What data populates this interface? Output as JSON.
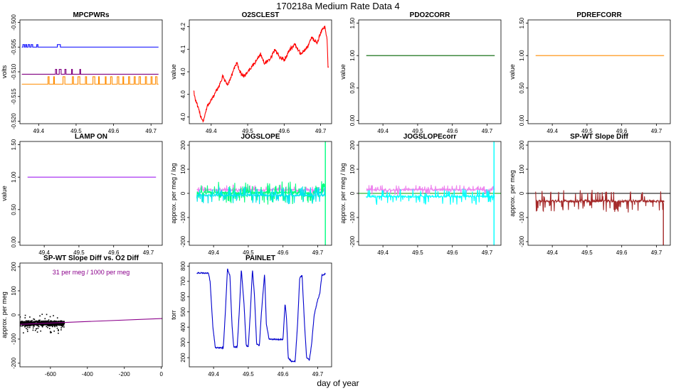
{
  "page_title": "170218a   Medium Rate Data 4",
  "shared_xlabel": "day of year",
  "chart_data": [
    {
      "id": "mpcpwrs",
      "type": "line",
      "title": "MPCPWRs",
      "ylabel": "volts",
      "xlim": [
        49.35,
        49.73
      ],
      "ylim": [
        -0.5205,
        -0.4995
      ],
      "xticks": [
        49.4,
        49.5,
        49.6,
        49.7
      ],
      "yticks": [
        -0.5,
        -0.505,
        -0.51,
        -0.515,
        -0.52
      ],
      "series": [
        {
          "color": "#0000ff",
          "gen": "step",
          "base": -0.505,
          "alt": -0.5045,
          "x0": 49.355,
          "x1": 49.72,
          "pulses": [
            [
              49.358,
              49.362
            ],
            [
              49.365,
              49.368
            ],
            [
              49.372,
              49.376
            ],
            [
              49.38,
              49.384
            ],
            [
              49.395,
              49.398
            ],
            [
              49.45,
              49.458
            ]
          ]
        },
        {
          "color": "#800080",
          "gen": "step",
          "base": -0.5105,
          "alt": -0.5095,
          "x0": 49.355,
          "x1": 49.72,
          "pulses": [
            [
              49.445,
              49.448
            ],
            [
              49.455,
              49.46
            ],
            [
              49.47,
              49.473
            ],
            [
              49.488,
              49.49
            ],
            [
              49.51,
              49.512
            ]
          ]
        },
        {
          "color": "#ff8c00",
          "gen": "step",
          "base": -0.5125,
          "alt": -0.511,
          "x0": 49.355,
          "x1": 49.72,
          "pulses": [
            [
              49.425,
              49.428
            ],
            [
              49.44,
              49.442
            ],
            [
              49.465,
              49.47
            ],
            [
              49.49,
              49.493
            ],
            [
              49.505,
              49.51
            ],
            [
              49.525,
              49.528
            ],
            [
              49.545,
              49.55
            ],
            [
              49.56,
              49.562
            ],
            [
              49.578,
              49.58
            ],
            [
              49.592,
              49.596
            ],
            [
              49.61,
              49.614
            ],
            [
              49.625,
              49.627
            ],
            [
              49.64,
              49.643
            ],
            [
              49.655,
              49.658
            ],
            [
              49.668,
              49.672
            ],
            [
              49.685,
              49.688
            ],
            [
              49.7,
              49.703
            ],
            [
              49.712,
              49.716
            ]
          ]
        }
      ]
    },
    {
      "id": "o2sclest",
      "type": "line",
      "title": "O2SCLEST",
      "ylabel": "value",
      "xlim": [
        49.34,
        49.73
      ],
      "ylim": [
        3.935,
        4.165
      ],
      "xticks": [
        49.4,
        49.5,
        49.6,
        49.7
      ],
      "yticks": [
        3.95,
        4.0,
        4.05,
        4.1,
        4.15
      ],
      "series": [
        {
          "color": "#ff0000",
          "gen": "noisy",
          "noise": 0.004,
          "x0": 49.352,
          "x1": 49.722,
          "points": [
            [
              49.352,
              4.01
            ],
            [
              49.356,
              3.99
            ],
            [
              49.37,
              3.955
            ],
            [
              49.378,
              3.94
            ],
            [
              49.39,
              3.975
            ],
            [
              49.41,
              4.0
            ],
            [
              49.425,
              4.025
            ],
            [
              49.432,
              4.04
            ],
            [
              49.445,
              4.02
            ],
            [
              49.46,
              4.05
            ],
            [
              49.47,
              4.07
            ],
            [
              49.478,
              4.05
            ],
            [
              49.49,
              4.04
            ],
            [
              49.505,
              4.055
            ],
            [
              49.52,
              4.07
            ],
            [
              49.535,
              4.09
            ],
            [
              49.545,
              4.07
            ],
            [
              49.56,
              4.075
            ],
            [
              49.575,
              4.1
            ],
            [
              49.585,
              4.085
            ],
            [
              49.6,
              4.075
            ],
            [
              49.615,
              4.1
            ],
            [
              49.63,
              4.11
            ],
            [
              49.645,
              4.09
            ],
            [
              49.66,
              4.1
            ],
            [
              49.675,
              4.125
            ],
            [
              49.69,
              4.115
            ],
            [
              49.705,
              4.145
            ],
            [
              49.712,
              4.15
            ],
            [
              49.718,
              4.12
            ],
            [
              49.72,
              4.06
            ]
          ]
        }
      ]
    },
    {
      "id": "pdo2corr",
      "type": "line",
      "title": "PDO2CORR",
      "ylabel": "value",
      "xlim": [
        49.33,
        49.74
      ],
      "ylim": [
        -0.05,
        1.55
      ],
      "xticks": [
        49.4,
        49.5,
        49.6,
        49.7
      ],
      "yticks": [
        0.0,
        0.5,
        1.0,
        1.5
      ],
      "series": [
        {
          "color": "#006400",
          "gen": "flat",
          "value": 1.0,
          "x0": 49.352,
          "x1": 49.722
        }
      ]
    },
    {
      "id": "pdrefcorr",
      "type": "line",
      "title": "PDREFCORR",
      "ylabel": "value",
      "xlim": [
        49.33,
        49.74
      ],
      "ylim": [
        -0.05,
        1.55
      ],
      "xticks": [
        49.4,
        49.5,
        49.6,
        49.7
      ],
      "yticks": [
        0.0,
        0.5,
        1.0,
        1.5
      ],
      "series": [
        {
          "color": "#ff8c00",
          "gen": "flat",
          "value": 1.0,
          "x0": 49.352,
          "x1": 49.722
        }
      ]
    },
    {
      "id": "lampon",
      "type": "line",
      "title": "LAMP ON",
      "ylabel": "value",
      "xlim": [
        49.33,
        49.74
      ],
      "ylim": [
        -0.05,
        1.55
      ],
      "xticks": [
        49.4,
        49.5,
        49.6,
        49.7
      ],
      "yticks": [
        0.0,
        0.5,
        1.0,
        1.5
      ],
      "series": [
        {
          "color": "#a020f0",
          "gen": "flat",
          "value": 1.0,
          "x0": 49.352,
          "x1": 49.722
        }
      ]
    },
    {
      "id": "jogslope",
      "type": "line",
      "title": "JOGSLOPE",
      "ylabel": "approx. per meg / log",
      "xlim": [
        49.33,
        49.74
      ],
      "ylim": [
        -215,
        215
      ],
      "xticks": [
        49.4,
        49.5,
        49.6,
        49.7
      ],
      "yticks": [
        -200,
        -100,
        0,
        100,
        200
      ],
      "series": [
        {
          "color": "#ee82ee",
          "gen": "spiky",
          "base": 14,
          "noise": 4,
          "spikes": 60,
          "spikeAmp": 20,
          "x0": 49.352,
          "x1": 49.722
        },
        {
          "color": "#00ff7f",
          "gen": "spiky",
          "base": 3,
          "noise": 5,
          "spikes": 110,
          "spikeAmp": 45,
          "x0": 49.352,
          "x1": 49.722,
          "endSpike": [
            49.722,
            -215,
            215
          ]
        },
        {
          "color": "#00e5ee",
          "gen": "spiky",
          "base": -8,
          "noise": 4,
          "spikes": 90,
          "spikeAmp": 35,
          "x0": 49.352,
          "x1": 49.722
        }
      ]
    },
    {
      "id": "jogslopecorr",
      "type": "line",
      "title": "JOGSLOPEcorr",
      "ylabel": "approx. per meg / log",
      "xlim": [
        49.33,
        49.74
      ],
      "ylim": [
        -215,
        215
      ],
      "xticks": [
        49.4,
        49.5,
        49.6,
        49.7
      ],
      "yticks": [
        -200,
        -100,
        0,
        100,
        200
      ],
      "hline": {
        "value": 0,
        "color": "#00a000"
      },
      "series": [
        {
          "color": "#ee82ee",
          "gen": "spiky",
          "base": 15,
          "noise": 4,
          "spikes": 70,
          "spikeAmp": 22,
          "x0": 49.352,
          "x1": 49.722
        },
        {
          "color": "#00ffff",
          "gen": "spiky",
          "base": -13,
          "noise": 4,
          "spikes": 80,
          "spikeAmp": 35,
          "x0": 49.352,
          "x1": 49.722,
          "endSpike": [
            49.72,
            -215,
            215
          ]
        }
      ]
    },
    {
      "id": "spwtslopediff",
      "type": "line",
      "title": "SP-WT Slope Diff",
      "ylabel": "approx. per meg",
      "xlim": [
        49.33,
        49.74
      ],
      "ylim": [
        -215,
        215
      ],
      "xticks": [
        49.4,
        49.5,
        49.6,
        49.7
      ],
      "yticks": [
        -200,
        -100,
        0,
        100,
        200
      ],
      "hline": {
        "value": 0,
        "color": "#000000"
      },
      "series": [
        {
          "color": "#a52a2a",
          "gen": "spiky",
          "base": -32,
          "noise": 5,
          "spikes": 80,
          "spikeAmp": 45,
          "x0": 49.352,
          "x1": 49.722,
          "endSpike": [
            49.72,
            -215,
            -40
          ]
        }
      ]
    },
    {
      "id": "scatter",
      "type": "scatter",
      "title": "SP-WT Slope Diff vs. O2 Diff",
      "ylabel": "approx. per meg",
      "xlim": [
        -765,
        5
      ],
      "ylim": [
        -215,
        215
      ],
      "xticks": [
        -600,
        -400,
        -200,
        0
      ],
      "yticks": [
        -200,
        -100,
        0,
        100,
        200
      ],
      "annotation": "31 per meg / 1000 per meg",
      "annotation_color": "#8b008b",
      "cluster": {
        "x0": -765,
        "x1": -525,
        "ycenter": -35,
        "spread": 12,
        "outlier_spread": 45,
        "count": 900,
        "color": "#000000"
      },
      "fit": {
        "slope": 0.031,
        "intercept": -15,
        "color": "#8b008b"
      }
    },
    {
      "id": "painlet",
      "type": "line",
      "title": "PAINLET",
      "ylabel": "torr",
      "xlim": [
        49.33,
        49.74
      ],
      "ylim": [
        140,
        820
      ],
      "xticks": [
        49.4,
        49.5,
        49.6,
        49.7
      ],
      "yticks": [
        200,
        300,
        400,
        500,
        600,
        700,
        800
      ],
      "series": [
        {
          "color": "#0000cd",
          "gen": "noisy",
          "noise": 4,
          "x0": 49.352,
          "x1": 49.722,
          "points": [
            [
              49.352,
              755
            ],
            [
              49.385,
              755
            ],
            [
              49.39,
              700
            ],
            [
              49.398,
              400
            ],
            [
              49.405,
              265
            ],
            [
              49.42,
              265
            ],
            [
              49.428,
              265
            ],
            [
              49.434,
              500
            ],
            [
              49.44,
              780
            ],
            [
              49.447,
              740
            ],
            [
              49.453,
              420
            ],
            [
              49.458,
              270
            ],
            [
              49.468,
              270
            ],
            [
              49.474,
              500
            ],
            [
              49.48,
              780
            ],
            [
              49.488,
              540
            ],
            [
              49.494,
              280
            ],
            [
              49.5,
              270
            ],
            [
              49.506,
              500
            ],
            [
              49.512,
              780
            ],
            [
              49.518,
              600
            ],
            [
              49.524,
              290
            ],
            [
              49.532,
              280
            ],
            [
              49.538,
              500
            ],
            [
              49.547,
              750
            ],
            [
              49.552,
              420
            ],
            [
              49.56,
              320
            ],
            [
              49.6,
              320
            ],
            [
              49.606,
              560
            ],
            [
              49.61,
              460
            ],
            [
              49.615,
              200
            ],
            [
              49.625,
              175
            ],
            [
              49.635,
              175
            ],
            [
              49.642,
              420
            ],
            [
              49.648,
              720
            ],
            [
              49.655,
              740
            ],
            [
              49.662,
              420
            ],
            [
              49.668,
              200
            ],
            [
              49.676,
              185
            ],
            [
              49.682,
              280
            ],
            [
              49.69,
              480
            ],
            [
              49.7,
              580
            ],
            [
              49.706,
              620
            ],
            [
              49.712,
              740
            ],
            [
              49.722,
              750
            ]
          ]
        }
      ]
    }
  ]
}
